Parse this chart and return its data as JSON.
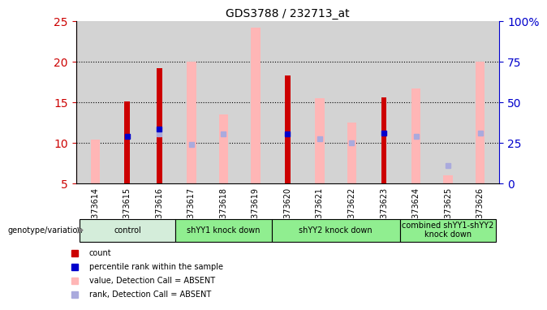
{
  "title": "GDS3788 / 232713_at",
  "samples": [
    "GSM373614",
    "GSM373615",
    "GSM373616",
    "GSM373617",
    "GSM373618",
    "GSM373619",
    "GSM373620",
    "GSM373621",
    "GSM373622",
    "GSM373623",
    "GSM373624",
    "GSM373625",
    "GSM373626"
  ],
  "red_bars": [
    null,
    15.1,
    19.2,
    null,
    null,
    null,
    18.3,
    null,
    null,
    15.6,
    null,
    null,
    null
  ],
  "pink_bars": [
    10.4,
    null,
    null,
    20.0,
    13.5,
    24.2,
    null,
    15.5,
    12.5,
    null,
    16.7,
    6.0,
    20.0
  ],
  "blue_dots": [
    null,
    10.8,
    11.7,
    null,
    null,
    null,
    11.1,
    null,
    null,
    11.2,
    null,
    null,
    null
  ],
  "light_blue_dots": [
    null,
    null,
    11.1,
    9.8,
    11.1,
    null,
    null,
    10.5,
    10.0,
    null,
    10.8,
    7.2,
    11.2
  ],
  "groups": [
    {
      "label": "control",
      "start": 0,
      "end": 2,
      "color": "#d4edda"
    },
    {
      "label": "shYY1 knock down",
      "start": 3,
      "end": 5,
      "color": "#90ee90"
    },
    {
      "label": "shYY2 knock down",
      "start": 6,
      "end": 9,
      "color": "#90ee90"
    },
    {
      "label": "combined shYY1-shYY2\nknock down",
      "start": 10,
      "end": 12,
      "color": "#90ee90"
    }
  ],
  "ylim_left": [
    5,
    25
  ],
  "ylim_right": [
    0,
    100
  ],
  "yticks_left": [
    5,
    10,
    15,
    20,
    25
  ],
  "yticks_right": [
    0,
    25,
    50,
    75,
    100
  ],
  "ytick_labels_right": [
    "0",
    "25",
    "50",
    "75",
    "100%"
  ],
  "hlines": [
    10,
    15,
    20
  ],
  "left_axis_color": "#cc0000",
  "right_axis_color": "#0000cc",
  "bar_width": 0.5,
  "red_bar_color": "#cc0000",
  "pink_bar_color": "#ffb6b6",
  "blue_dot_color": "#0000cc",
  "light_blue_dot_color": "#aaaadd",
  "legend_items": [
    {
      "label": "count",
      "color": "#cc0000",
      "marker": "s"
    },
    {
      "label": "percentile rank within the sample",
      "color": "#0000cc",
      "marker": "s"
    },
    {
      "label": "value, Detection Call = ABSENT",
      "color": "#ffb6b6",
      "marker": "s"
    },
    {
      "label": "rank, Detection Call = ABSENT",
      "color": "#aaaadd",
      "marker": "s"
    }
  ],
  "bottom_label": "genotype/variation",
  "bg_color": "#d3d3d3"
}
